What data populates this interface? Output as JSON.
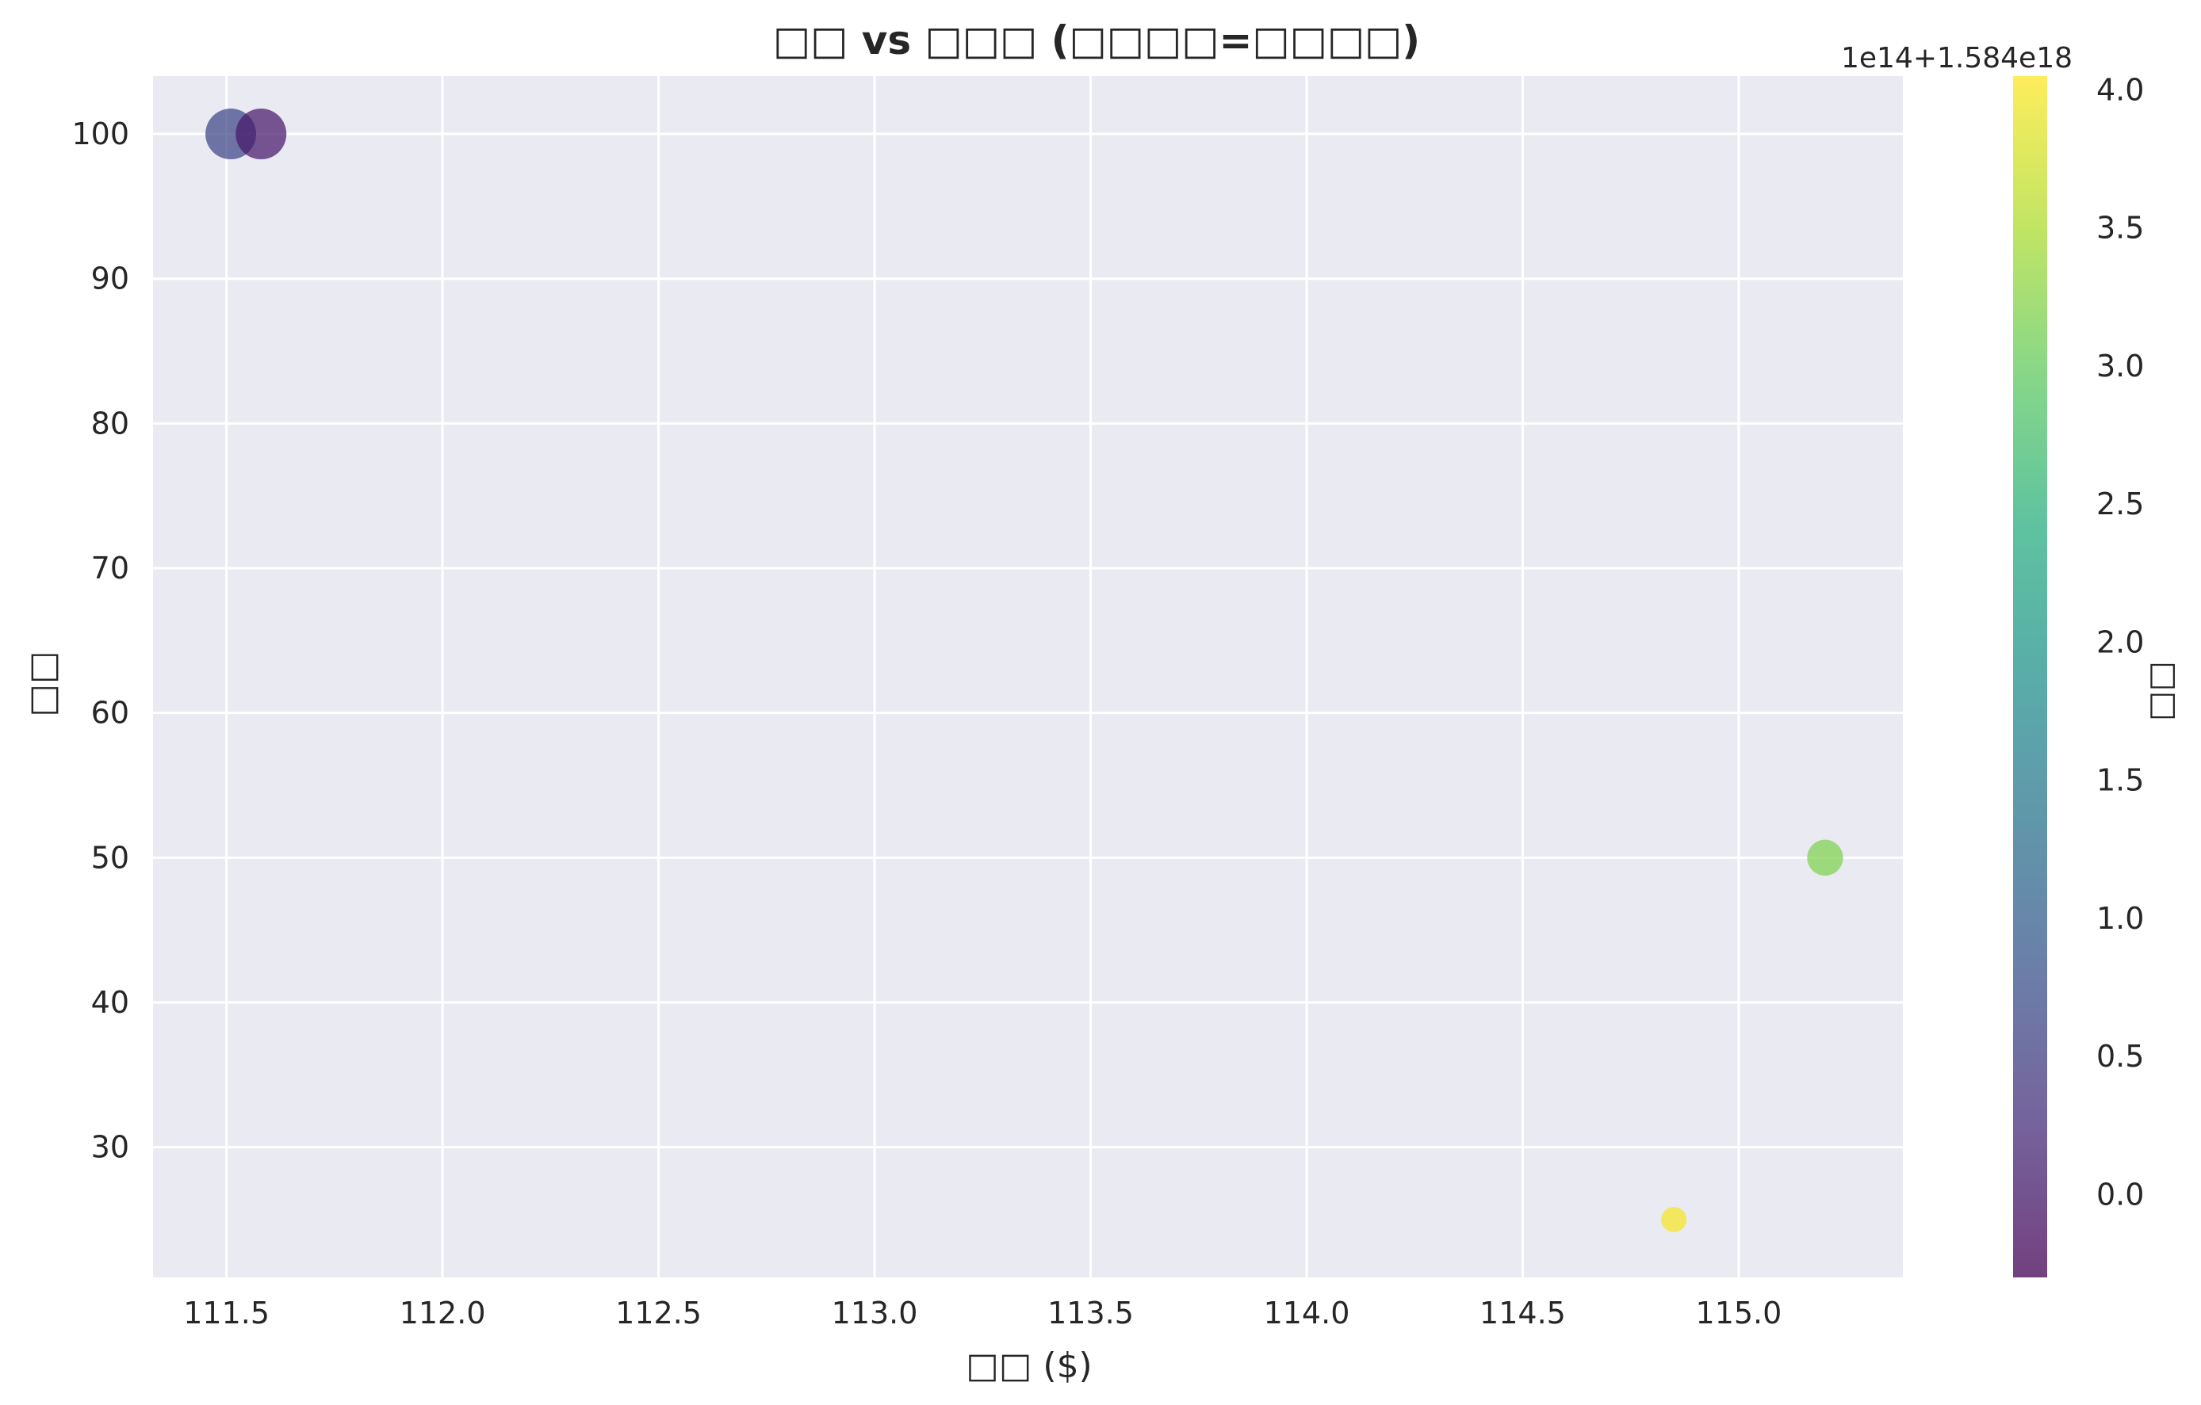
{
  "chart_data": {
    "type": "scatter",
    "title": "□□ vs □□□ (□□□□=□□□□)",
    "xlabel": "□□ ($)",
    "ylabel": "□□",
    "xlim": [
      111.33,
      115.38
    ],
    "ylim": [
      21,
      104
    ],
    "x_ticks": [
      "111.5",
      "112.0",
      "112.5",
      "113.0",
      "113.5",
      "114.0",
      "114.5",
      "115.0"
    ],
    "y_ticks": [
      "30",
      "40",
      "50",
      "60",
      "70",
      "80",
      "90",
      "100"
    ],
    "grid": true,
    "colorbar": {
      "label": "□□",
      "offset_text": "1e14+1.584e18",
      "range": [
        -0.3,
        4.05
      ],
      "ticks": [
        "0.0",
        "0.5",
        "1.0",
        "1.5",
        "2.0",
        "2.5",
        "3.0",
        "3.5",
        "4.0"
      ],
      "colormap": "viridis"
    },
    "points": [
      {
        "x": 111.51,
        "y": 100,
        "color_value": 0.6,
        "size": 100
      },
      {
        "x": 111.58,
        "y": 100,
        "color_value": 0.0,
        "size": 100
      },
      {
        "x": 115.2,
        "y": 50,
        "color_value": 3.2,
        "size": 50
      },
      {
        "x": 114.85,
        "y": 25,
        "color_value": 4.0,
        "size": 25
      }
    ],
    "colors": {
      "plot_background": "#eaeaf2",
      "grid": "#ffffff",
      "text": "#262626"
    }
  }
}
